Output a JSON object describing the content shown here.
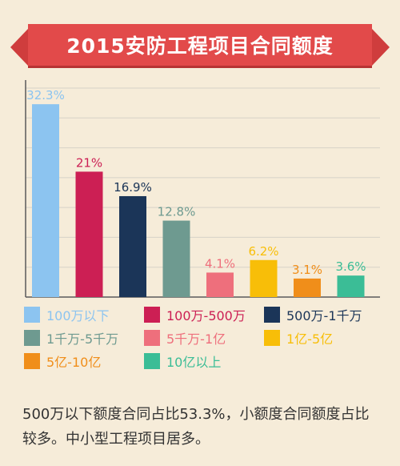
{
  "title": "2015安防工程项目合同额度",
  "colors": {
    "background": "#f6ecd9",
    "banner": "#e24a4a",
    "grid": "#d7d2c8",
    "axis": "#5a5a5a"
  },
  "chart_data": {
    "type": "bar",
    "categories": [
      "100万以下",
      "100万-500万",
      "500万-1千万",
      "1千万-5千万",
      "5千万-1亿",
      "1亿-5亿",
      "5亿-10亿",
      "10亿以上"
    ],
    "values": [
      32.3,
      21,
      16.9,
      12.8,
      4.1,
      6.2,
      3.1,
      3.6
    ],
    "data_labels": [
      "32.3%",
      "21%",
      "16.9%",
      "12.8%",
      "4.1%",
      "6.2%",
      "3.1%",
      "3.6%"
    ],
    "colors": [
      "#8cc4f0",
      "#cc1f54",
      "#1b3558",
      "#6e9a90",
      "#ee6f7c",
      "#f8be08",
      "#f08e1a",
      "#3bbd96"
    ],
    "ylim": [
      0,
      35
    ],
    "grid": true,
    "legend_position": "bottom"
  },
  "summary": "500万以下额度合同占比53.3%，小额度合同额度占比较多。中小型工程项目居多。"
}
